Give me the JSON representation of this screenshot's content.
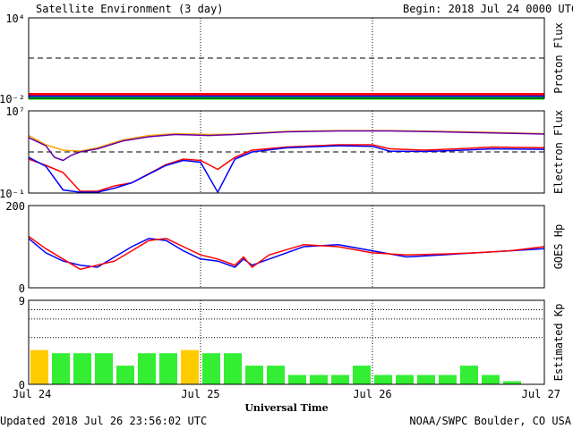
{
  "header": {
    "title": "Satellite Environment (3 day)",
    "begin": "Begin:  2018 Jul 24 0000 UTC"
  },
  "footer": {
    "updated": "Updated 2018 Jul 26 23:56:02 UTC",
    "credit": "NOAA/SWPC Boulder, CO USA"
  },
  "colors": {
    "red": "#ff0000",
    "blue": "#0000ff",
    "green": "#00ee00",
    "orange": "#ffa500",
    "purple": "#6600aa",
    "kp_green": "#33ee33",
    "kp_yellow": "#ffcc00"
  },
  "chart_data": [
    {
      "type": "line",
      "ylabel": "Proton Flux",
      "yscale": "log",
      "ylim": [
        0.01,
        10000
      ],
      "ytick_labels": [
        "10⁴",
        "10⁻²"
      ],
      "threshold_lines": [
        10
      ],
      "x_days": [
        0,
        3
      ],
      "series": [
        {
          "color": "red",
          "x": [
            0,
            3
          ],
          "y": [
            0.02,
            0.02
          ]
        },
        {
          "color": "blue",
          "x": [
            0,
            3
          ],
          "y": [
            0.013,
            0.013
          ]
        },
        {
          "color": "green",
          "x": [
            0,
            3
          ],
          "y": [
            0.009,
            0.009
          ]
        }
      ]
    },
    {
      "type": "line",
      "ylabel": "Electron Flux",
      "yscale": "log",
      "ylim": [
        0.1,
        10000000
      ],
      "ytick_labels": [
        "10⁷",
        "10⁻¹"
      ],
      "threshold_lines": [
        1000
      ],
      "series": [
        {
          "color": "orange",
          "x": [
            0,
            0.1,
            0.2,
            0.3,
            0.4,
            0.55,
            0.7,
            0.85,
            0.95,
            1.05,
            1.2,
            1.5,
            1.8,
            2.1,
            2.4,
            2.7,
            3.0
          ],
          "y": [
            40000,
            5000,
            1500,
            1200,
            2500,
            15000,
            40000,
            60000,
            55000,
            50000,
            55000,
            100000,
            120000,
            120000,
            100000,
            80000,
            60000
          ]
        },
        {
          "color": "purple",
          "x": [
            0,
            0.1,
            0.15,
            0.2,
            0.25,
            0.3,
            0.4,
            0.55,
            0.7,
            0.85,
            0.95,
            1.05,
            1.2,
            1.5,
            1.8,
            2.1,
            2.4,
            2.7,
            3.0
          ],
          "y": [
            25000,
            4000,
            300,
            150,
            500,
            1000,
            2000,
            12000,
            30000,
            50000,
            45000,
            40000,
            50000,
            90000,
            110000,
            110000,
            90000,
            70000,
            55000
          ]
        },
        {
          "color": "red",
          "x": [
            0,
            0.1,
            0.2,
            0.3,
            0.4,
            0.5,
            0.6,
            0.8,
            0.9,
            1.0,
            1.1,
            1.2,
            1.3,
            1.5,
            1.8,
            2.0,
            2.1,
            2.3,
            2.5,
            2.7,
            3.0
          ],
          "y": [
            200,
            50,
            10,
            0.15,
            0.15,
            0.5,
            1,
            60,
            200,
            150,
            20,
            300,
            1500,
            3000,
            5000,
            5000,
            2000,
            1500,
            2000,
            3000,
            2500
          ]
        },
        {
          "color": "blue",
          "x": [
            0,
            0.1,
            0.2,
            0.3,
            0.4,
            0.5,
            0.6,
            0.8,
            0.9,
            1.0,
            1.1,
            1.2,
            1.3,
            1.5,
            1.8,
            2.0,
            2.1,
            2.3,
            2.5,
            2.7,
            3.0
          ],
          "y": [
            300,
            40,
            0.2,
            0.12,
            0.12,
            0.3,
            1,
            50,
            150,
            100,
            0.12,
            200,
            1000,
            2500,
            4000,
            3500,
            1200,
            1100,
            1400,
            2000,
            1800
          ]
        }
      ]
    },
    {
      "type": "line",
      "ylabel": "GOES Hp",
      "ylim": [
        0,
        200
      ],
      "yticks": [
        200,
        0
      ],
      "series": [
        {
          "color": "blue",
          "x": [
            0,
            0.1,
            0.2,
            0.3,
            0.4,
            0.5,
            0.6,
            0.7,
            0.8,
            0.9,
            1.0,
            1.1,
            1.2,
            1.25,
            1.3,
            1.4,
            1.6,
            1.8,
            2.0,
            2.2,
            2.4,
            2.6,
            2.8,
            3.0
          ],
          "y": [
            120,
            85,
            65,
            55,
            50,
            75,
            100,
            120,
            115,
            90,
            70,
            65,
            50,
            70,
            55,
            70,
            100,
            105,
            90,
            75,
            80,
            85,
            90,
            95
          ]
        },
        {
          "color": "red",
          "x": [
            0,
            0.1,
            0.2,
            0.3,
            0.4,
            0.5,
            0.6,
            0.7,
            0.8,
            0.9,
            1.0,
            1.1,
            1.2,
            1.25,
            1.3,
            1.4,
            1.6,
            1.8,
            2.0,
            2.2,
            2.4,
            2.6,
            2.8,
            3.0
          ],
          "y": [
            125,
            95,
            70,
            45,
            55,
            65,
            90,
            115,
            120,
            100,
            80,
            70,
            55,
            75,
            50,
            80,
            105,
            100,
            85,
            80,
            82,
            85,
            90,
            100
          ]
        }
      ]
    },
    {
      "type": "bar",
      "ylabel": "Estimated Kp",
      "ylim": [
        0,
        9
      ],
      "yticks": [
        9,
        0
      ],
      "bar_width_days": 0.125,
      "values": [
        3.67,
        3.33,
        3.33,
        3.33,
        2.0,
        3.33,
        3.33,
        3.67,
        3.33,
        3.33,
        2.0,
        2.0,
        1.0,
        1.0,
        1.0,
        2.0,
        1.0,
        1.0,
        1.0,
        1.0,
        2.0,
        1.0,
        0.33,
        0
      ],
      "colors": [
        "kp_yellow",
        "kp_green",
        "kp_green",
        "kp_green",
        "kp_green",
        "kp_green",
        "kp_green",
        "kp_yellow",
        "kp_green",
        "kp_green",
        "kp_green",
        "kp_green",
        "kp_green",
        "kp_green",
        "kp_green",
        "kp_green",
        "kp_green",
        "kp_green",
        "kp_green",
        "kp_green",
        "kp_green",
        "kp_green",
        "kp_green",
        "kp_green"
      ]
    }
  ],
  "x_axis": {
    "ticks": [
      "Jul 24",
      "Jul 25",
      "Jul 26",
      "Jul 27"
    ],
    "label": "Universal Time"
  }
}
